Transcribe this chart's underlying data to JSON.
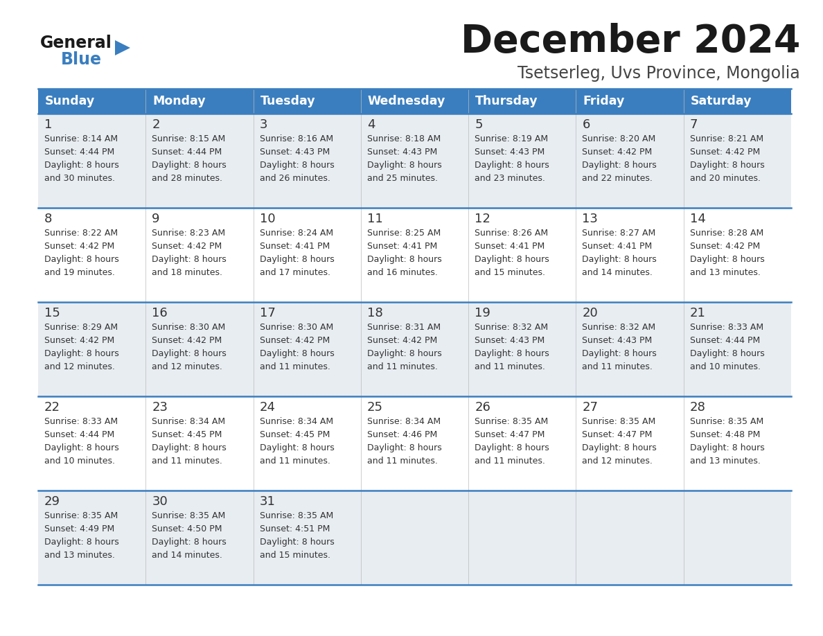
{
  "title": "December 2024",
  "subtitle": "Tsetserleg, Uvs Province, Mongolia",
  "header_bg": "#3a7ebf",
  "header_text": "#ffffff",
  "row_bg_light": "#e8edf2",
  "row_bg_white": "#ffffff",
  "divider_color": "#3a7ebf",
  "text_color": "#333333",
  "day_headers": [
    "Sunday",
    "Monday",
    "Tuesday",
    "Wednesday",
    "Thursday",
    "Friday",
    "Saturday"
  ],
  "days": [
    {
      "day": 1,
      "col": 0,
      "row": 0,
      "sunrise": "8:14 AM",
      "sunset": "4:44 PM",
      "daylight_min": "30"
    },
    {
      "day": 2,
      "col": 1,
      "row": 0,
      "sunrise": "8:15 AM",
      "sunset": "4:44 PM",
      "daylight_min": "28"
    },
    {
      "day": 3,
      "col": 2,
      "row": 0,
      "sunrise": "8:16 AM",
      "sunset": "4:43 PM",
      "daylight_min": "26"
    },
    {
      "day": 4,
      "col": 3,
      "row": 0,
      "sunrise": "8:18 AM",
      "sunset": "4:43 PM",
      "daylight_min": "25"
    },
    {
      "day": 5,
      "col": 4,
      "row": 0,
      "sunrise": "8:19 AM",
      "sunset": "4:43 PM",
      "daylight_min": "23"
    },
    {
      "day": 6,
      "col": 5,
      "row": 0,
      "sunrise": "8:20 AM",
      "sunset": "4:42 PM",
      "daylight_min": "22"
    },
    {
      "day": 7,
      "col": 6,
      "row": 0,
      "sunrise": "8:21 AM",
      "sunset": "4:42 PM",
      "daylight_min": "20"
    },
    {
      "day": 8,
      "col": 0,
      "row": 1,
      "sunrise": "8:22 AM",
      "sunset": "4:42 PM",
      "daylight_min": "19"
    },
    {
      "day": 9,
      "col": 1,
      "row": 1,
      "sunrise": "8:23 AM",
      "sunset": "4:42 PM",
      "daylight_min": "18"
    },
    {
      "day": 10,
      "col": 2,
      "row": 1,
      "sunrise": "8:24 AM",
      "sunset": "4:41 PM",
      "daylight_min": "17"
    },
    {
      "day": 11,
      "col": 3,
      "row": 1,
      "sunrise": "8:25 AM",
      "sunset": "4:41 PM",
      "daylight_min": "16"
    },
    {
      "day": 12,
      "col": 4,
      "row": 1,
      "sunrise": "8:26 AM",
      "sunset": "4:41 PM",
      "daylight_min": "15"
    },
    {
      "day": 13,
      "col": 5,
      "row": 1,
      "sunrise": "8:27 AM",
      "sunset": "4:41 PM",
      "daylight_min": "14"
    },
    {
      "day": 14,
      "col": 6,
      "row": 1,
      "sunrise": "8:28 AM",
      "sunset": "4:42 PM",
      "daylight_min": "13"
    },
    {
      "day": 15,
      "col": 0,
      "row": 2,
      "sunrise": "8:29 AM",
      "sunset": "4:42 PM",
      "daylight_min": "12"
    },
    {
      "day": 16,
      "col": 1,
      "row": 2,
      "sunrise": "8:30 AM",
      "sunset": "4:42 PM",
      "daylight_min": "12"
    },
    {
      "day": 17,
      "col": 2,
      "row": 2,
      "sunrise": "8:30 AM",
      "sunset": "4:42 PM",
      "daylight_min": "11"
    },
    {
      "day": 18,
      "col": 3,
      "row": 2,
      "sunrise": "8:31 AM",
      "sunset": "4:42 PM",
      "daylight_min": "11"
    },
    {
      "day": 19,
      "col": 4,
      "row": 2,
      "sunrise": "8:32 AM",
      "sunset": "4:43 PM",
      "daylight_min": "11"
    },
    {
      "day": 20,
      "col": 5,
      "row": 2,
      "sunrise": "8:32 AM",
      "sunset": "4:43 PM",
      "daylight_min": "11"
    },
    {
      "day": 21,
      "col": 6,
      "row": 2,
      "sunrise": "8:33 AM",
      "sunset": "4:44 PM",
      "daylight_min": "10"
    },
    {
      "day": 22,
      "col": 0,
      "row": 3,
      "sunrise": "8:33 AM",
      "sunset": "4:44 PM",
      "daylight_min": "10"
    },
    {
      "day": 23,
      "col": 1,
      "row": 3,
      "sunrise": "8:34 AM",
      "sunset": "4:45 PM",
      "daylight_min": "11"
    },
    {
      "day": 24,
      "col": 2,
      "row": 3,
      "sunrise": "8:34 AM",
      "sunset": "4:45 PM",
      "daylight_min": "11"
    },
    {
      "day": 25,
      "col": 3,
      "row": 3,
      "sunrise": "8:34 AM",
      "sunset": "4:46 PM",
      "daylight_min": "11"
    },
    {
      "day": 26,
      "col": 4,
      "row": 3,
      "sunrise": "8:35 AM",
      "sunset": "4:47 PM",
      "daylight_min": "11"
    },
    {
      "day": 27,
      "col": 5,
      "row": 3,
      "sunrise": "8:35 AM",
      "sunset": "4:47 PM",
      "daylight_min": "12"
    },
    {
      "day": 28,
      "col": 6,
      "row": 3,
      "sunrise": "8:35 AM",
      "sunset": "4:48 PM",
      "daylight_min": "13"
    },
    {
      "day": 29,
      "col": 0,
      "row": 4,
      "sunrise": "8:35 AM",
      "sunset": "4:49 PM",
      "daylight_min": "13"
    },
    {
      "day": 30,
      "col": 1,
      "row": 4,
      "sunrise": "8:35 AM",
      "sunset": "4:50 PM",
      "daylight_min": "14"
    },
    {
      "day": 31,
      "col": 2,
      "row": 4,
      "sunrise": "8:35 AM",
      "sunset": "4:51 PM",
      "daylight_min": "15"
    }
  ]
}
